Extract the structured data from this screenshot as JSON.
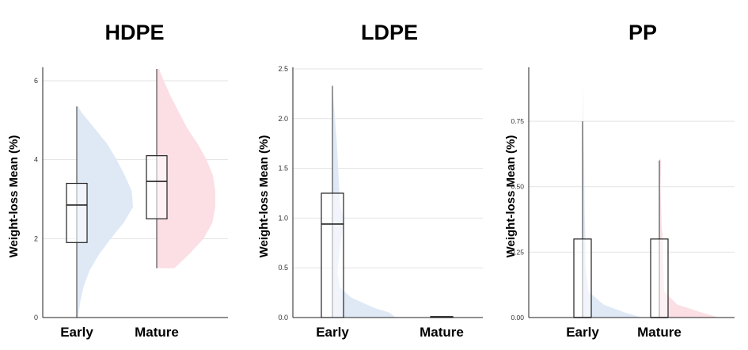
{
  "chart_data": [
    {
      "type": "raincloud",
      "title": "HDPE",
      "ylabel": "Weight-loss Mean (%)",
      "ylim": [
        0,
        6.3
      ],
      "yticks": [
        0,
        2,
        4,
        6
      ],
      "yticklabels": [
        "0",
        "2",
        "4",
        "6"
      ],
      "categories": [
        "Early",
        "Mature"
      ],
      "series": [
        {
          "color": "#dde8f5",
          "box": {
            "min": 0,
            "q1": 1.9,
            "median": 2.85,
            "q3": 3.4,
            "max": 5.35
          },
          "density": [
            [
              0,
              0.02
            ],
            [
              0.4,
              0.06
            ],
            [
              0.8,
              0.12
            ],
            [
              1.2,
              0.22
            ],
            [
              1.6,
              0.38
            ],
            [
              2.0,
              0.58
            ],
            [
              2.4,
              0.8
            ],
            [
              2.8,
              0.96
            ],
            [
              3.2,
              0.94
            ],
            [
              3.6,
              0.82
            ],
            [
              4.0,
              0.68
            ],
            [
              4.4,
              0.52
            ],
            [
              4.8,
              0.3
            ],
            [
              5.2,
              0.08
            ],
            [
              5.35,
              0.02
            ]
          ]
        },
        {
          "color": "#fbdde3",
          "box": {
            "min": 1.25,
            "q1": 2.5,
            "median": 3.45,
            "q3": 4.1,
            "max": 6.3
          },
          "density": [
            [
              1.25,
              0.3
            ],
            [
              1.6,
              0.55
            ],
            [
              2.0,
              0.8
            ],
            [
              2.4,
              0.95
            ],
            [
              2.8,
              1.0
            ],
            [
              3.2,
              1.0
            ],
            [
              3.6,
              0.96
            ],
            [
              4.0,
              0.85
            ],
            [
              4.4,
              0.7
            ],
            [
              4.8,
              0.52
            ],
            [
              5.2,
              0.38
            ],
            [
              5.6,
              0.24
            ],
            [
              6.0,
              0.12
            ],
            [
              6.3,
              0.04
            ]
          ]
        }
      ]
    },
    {
      "type": "raincloud",
      "title": "LDPE",
      "ylabel": "Weight-loss Mean (%)",
      "ylim": [
        0,
        2.5
      ],
      "yticks": [
        0,
        0.5,
        1,
        1.5,
        2,
        2.5
      ],
      "yticklabels": [
        "0.0",
        "0.5",
        "1.0",
        "1.5",
        "2.0",
        "2.5"
      ],
      "categories": [
        "Early",
        "Mature"
      ],
      "series": [
        {
          "color": "#dde8f5",
          "box": {
            "min": 0,
            "q1": 0,
            "median": 0.94,
            "q3": 1.25,
            "max": 2.33
          },
          "density": [
            [
              0,
              1.0
            ],
            [
              0.05,
              0.9
            ],
            [
              0.1,
              0.65
            ],
            [
              0.2,
              0.3
            ],
            [
              0.3,
              0.12
            ],
            [
              0.45,
              0.08
            ],
            [
              0.6,
              0.1
            ],
            [
              0.75,
              0.13
            ],
            [
              0.9,
              0.16
            ],
            [
              1.0,
              0.18
            ],
            [
              1.1,
              0.13
            ],
            [
              1.25,
              0.11
            ],
            [
              1.5,
              0.09
            ],
            [
              1.75,
              0.07
            ],
            [
              2.0,
              0.04
            ],
            [
              2.2,
              0.015
            ],
            [
              2.33,
              0.0
            ]
          ]
        },
        {
          "color": "#fbdde3",
          "box": {
            "min": 0,
            "q1": 0,
            "median": 0.005,
            "q3": 0.01,
            "max": 0.01
          },
          "density": []
        }
      ]
    },
    {
      "type": "raincloud",
      "title": "PP",
      "ylabel": "Weight-loss Mean (%)",
      "ylim": [
        0,
        0.95
      ],
      "yticks": [
        0,
        0.25,
        0.5,
        0.75
      ],
      "yticklabels": [
        "0.00",
        "0.25",
        "0.50",
        "0.75"
      ],
      "categories": [
        "Early",
        "Mature"
      ],
      "series": [
        {
          "color": "#dde8f5",
          "box": {
            "min": 0,
            "q1": 0,
            "median": 0,
            "q3": 0.3,
            "max": 0.75
          },
          "density": [
            [
              0,
              1.0
            ],
            [
              0.02,
              0.7
            ],
            [
              0.05,
              0.35
            ],
            [
              0.1,
              0.1
            ],
            [
              0.2,
              0.05
            ],
            [
              0.3,
              0.05
            ],
            [
              0.4,
              0.035
            ],
            [
              0.5,
              0.03
            ],
            [
              0.6,
              0.025
            ],
            [
              0.7,
              0.015
            ],
            [
              0.75,
              0.01
            ],
            [
              0.9,
              0.0
            ]
          ]
        },
        {
          "color": "#fbdde3",
          "box": {
            "min": 0,
            "q1": 0,
            "median": 0,
            "q3": 0.3,
            "max": 0.6
          },
          "density": [
            [
              0,
              1.0
            ],
            [
              0.02,
              0.7
            ],
            [
              0.05,
              0.3
            ],
            [
              0.1,
              0.08
            ],
            [
              0.25,
              0.06
            ],
            [
              0.3,
              0.06
            ],
            [
              0.35,
              0.04
            ],
            [
              0.5,
              0.02
            ],
            [
              0.6,
              0.03
            ],
            [
              0.61,
              0.0
            ]
          ]
        }
      ]
    }
  ]
}
